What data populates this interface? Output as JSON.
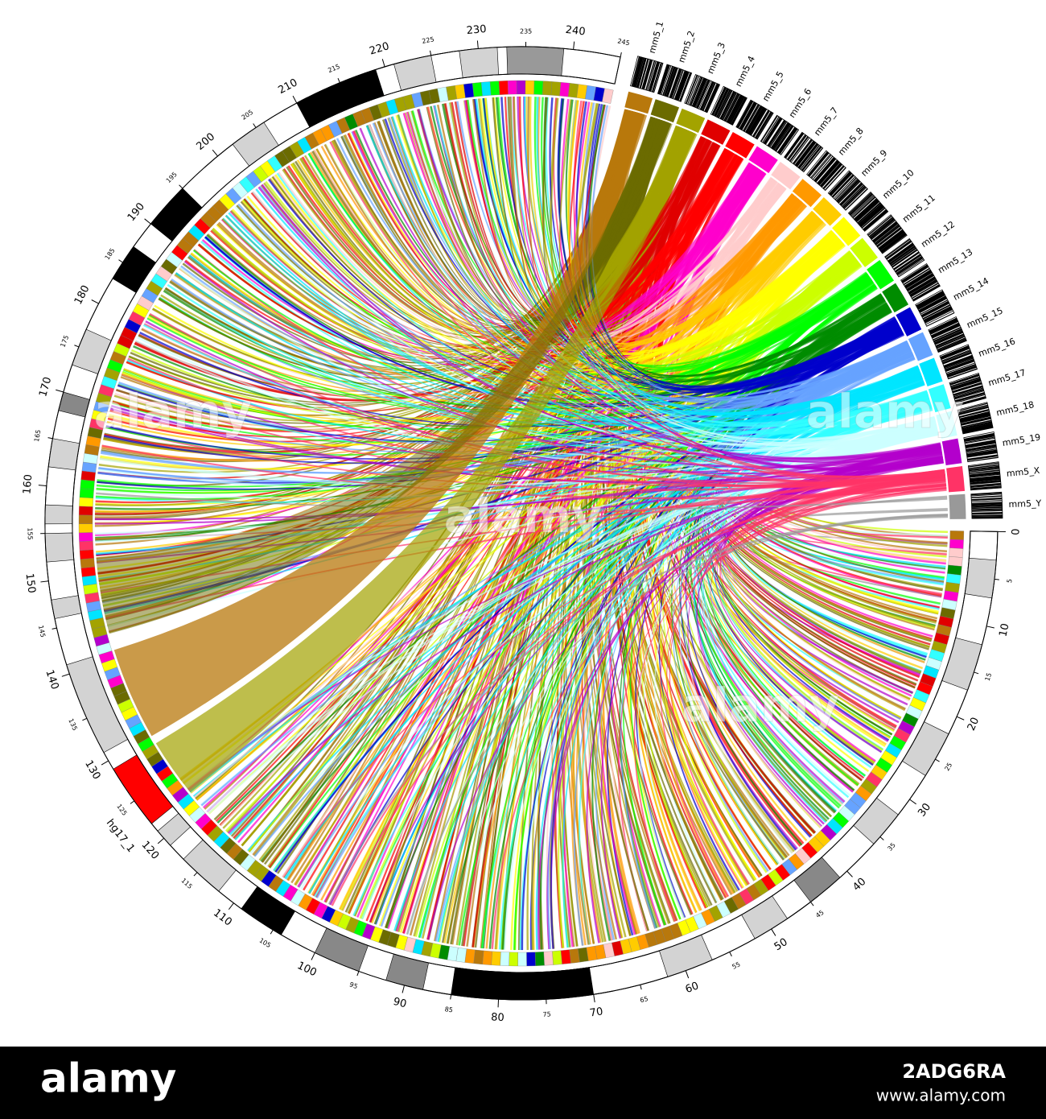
{
  "chart_data": {
    "type": "circos",
    "segment_label": "hg17_1",
    "xlim": [
      0,
      245
    ],
    "xticks": [
      0,
      5,
      10,
      15,
      20,
      25,
      30,
      35,
      40,
      45,
      50,
      55,
      60,
      65,
      70,
      75,
      80,
      85,
      90,
      95,
      100,
      105,
      110,
      115,
      120,
      125,
      130,
      135,
      140,
      145,
      150,
      155,
      160,
      165,
      170,
      175,
      180,
      185,
      190,
      195,
      200,
      205,
      210,
      215,
      220,
      225,
      230,
      235,
      240,
      245
    ],
    "bands": [
      {
        "start": 3,
        "end": 7,
        "color": "#d3d3d3"
      },
      {
        "start": 12,
        "end": 17,
        "color": "#d3d3d3"
      },
      {
        "start": 22,
        "end": 27,
        "color": "#d3d3d3"
      },
      {
        "start": 32,
        "end": 36,
        "color": "#d3d3d3"
      },
      {
        "start": 41,
        "end": 45,
        "color": "#888888"
      },
      {
        "start": 48,
        "end": 52,
        "color": "#d3d3d3"
      },
      {
        "start": 57,
        "end": 62,
        "color": "#d3d3d3"
      },
      {
        "start": 70,
        "end": 85,
        "color": "#000000"
      },
      {
        "start": 88,
        "end": 92,
        "color": "#888888"
      },
      {
        "start": 95,
        "end": 100,
        "color": "#888888"
      },
      {
        "start": 104,
        "end": 109,
        "color": "#000000"
      },
      {
        "start": 112,
        "end": 117,
        "color": "#d3d3d3"
      },
      {
        "start": 119,
        "end": 121,
        "color": "#d3d3d3"
      },
      {
        "start": 122,
        "end": 129,
        "color": "#ff0000"
      },
      {
        "start": 131,
        "end": 141,
        "color": "#d3d3d3"
      },
      {
        "start": 146,
        "end": 148,
        "color": "#d3d3d3"
      },
      {
        "start": 152,
        "end": 155,
        "color": "#d3d3d3"
      },
      {
        "start": 156,
        "end": 158,
        "color": "#d3d3d3"
      },
      {
        "start": 162,
        "end": 165,
        "color": "#d3d3d3"
      },
      {
        "start": 168,
        "end": 170,
        "color": "#888888"
      },
      {
        "start": 173,
        "end": 177,
        "color": "#d3d3d3"
      },
      {
        "start": 183,
        "end": 187,
        "color": "#000000"
      },
      {
        "start": 190,
        "end": 195,
        "color": "#000000"
      },
      {
        "start": 202,
        "end": 206,
        "color": "#d3d3d3"
      },
      {
        "start": 210,
        "end": 219,
        "color": "#000000"
      },
      {
        "start": 221,
        "end": 225,
        "color": "#d3d3d3"
      },
      {
        "start": 228,
        "end": 232,
        "color": "#d3d3d3"
      },
      {
        "start": 233,
        "end": 239,
        "color": "#999999"
      }
    ],
    "series": [
      {
        "name": "mm5_1",
        "color": "#b8780c"
      },
      {
        "name": "mm5_2",
        "color": "#6b6b00"
      },
      {
        "name": "mm5_3",
        "color": "#a3a300"
      },
      {
        "name": "mm5_4",
        "color": "#e00000"
      },
      {
        "name": "mm5_5",
        "color": "#ff0000"
      },
      {
        "name": "mm5_6",
        "color": "#ff00cc"
      },
      {
        "name": "mm5_7",
        "color": "#ffcccc"
      },
      {
        "name": "mm5_8",
        "color": "#ff9900"
      },
      {
        "name": "mm5_9",
        "color": "#ffcc00"
      },
      {
        "name": "mm5_10",
        "color": "#ffff00"
      },
      {
        "name": "mm5_11",
        "color": "#ccff00"
      },
      {
        "name": "mm5_12",
        "color": "#00ff00"
      },
      {
        "name": "mm5_13",
        "color": "#008c00"
      },
      {
        "name": "mm5_14",
        "color": "#0000cc"
      },
      {
        "name": "mm5_15",
        "color": "#66a3ff"
      },
      {
        "name": "mm5_16",
        "color": "#00e5ff"
      },
      {
        "name": "mm5_17",
        "color": "#33ffff"
      },
      {
        "name": "mm5_18",
        "color": "#ccffff"
      },
      {
        "name": "mm5_19",
        "color": "#b300cc"
      },
      {
        "name": "mm5_X",
        "color": "#ff3366"
      },
      {
        "name": "mm5_Y",
        "color": "#999999"
      }
    ],
    "watermark": "alamy"
  },
  "footer": {
    "logo": "alamy",
    "image_id": "2ADG6RA",
    "url": "www.alamy.com"
  }
}
